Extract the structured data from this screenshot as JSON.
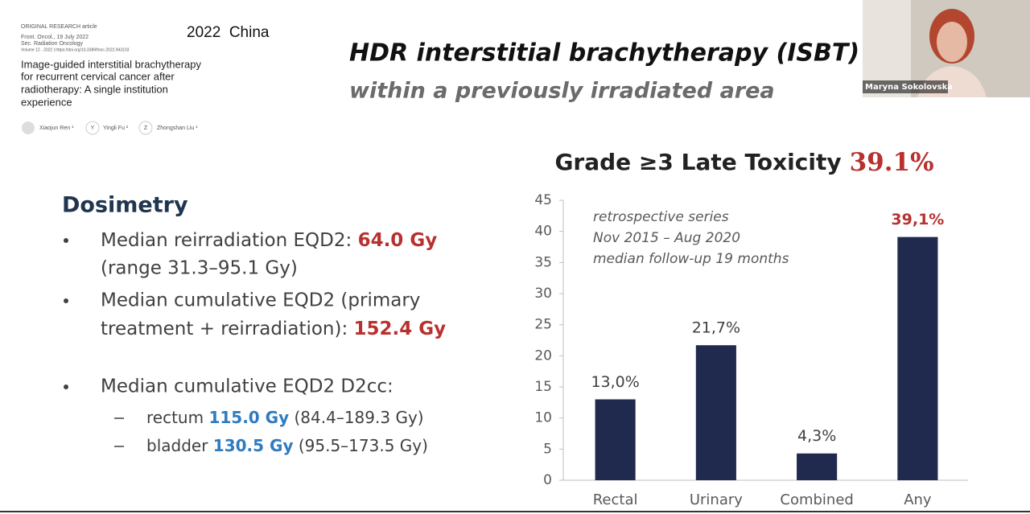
{
  "paper": {
    "article_type": "ORIGINAL RESEARCH article",
    "journal": "Front. Oncol., 19 July 2022",
    "section": "Sec. Radiation Oncology",
    "doi": "Volume 12 - 2022 | https://doi.org/10.3389/fonc.2022.943103",
    "title_lines": [
      "Image-guided interstitial brachytherapy",
      "for recurrent cervical cancer after",
      "radiotherapy: A single institution",
      "experience"
    ],
    "authors": [
      "Xiaojun Ren ¹",
      "Yingli Fu ²",
      "Zhongshan Liu ¹"
    ],
    "author_initials": [
      "Y",
      "Z"
    ]
  },
  "year_country": "2022  China",
  "title": "HDR interstitial brachytherapy (ISBT) ± EBRT",
  "subtitle": "within a previously irradiated area",
  "video": {
    "name": "Maryna Sokolovska"
  },
  "dosimetry": {
    "heading": "Dosimetry",
    "items": [
      {
        "lines": [
          [
            "Median reirradiation EQD2: ",
            "64.0 Gy"
          ],
          [
            "(range 31.3–95.1 Gy)"
          ]
        ]
      },
      {
        "lines": [
          [
            "Median cumulative EQD2 (primary"
          ],
          [
            "treatment + reirradiation): ",
            "152.4 Gy"
          ]
        ]
      },
      {
        "lines": [
          [
            "Median cumulative EQD2 D2cc:"
          ]
        ]
      }
    ],
    "subitems": [
      [
        "rectum ",
        "115.0 Gy",
        " (84.4–189.3 Gy)"
      ],
      [
        "bladder ",
        "130.5 Gy",
        " (95.5–173.5 Gy)"
      ]
    ]
  },
  "chart_data": {
    "type": "bar",
    "title": "Grade ≥3 Late Toxicity",
    "title_highlight": "39.1%",
    "annotations": [
      "retrospective series",
      "Nov 2015 – Aug 2020",
      "median follow-up 19 months"
    ],
    "categories": [
      "Rectal",
      "Urinary",
      "Combined",
      "Any"
    ],
    "values": [
      13.0,
      21.7,
      4.3,
      39.1
    ],
    "value_labels": [
      "13,0%",
      "21,7%",
      "4,3%",
      "39,1%"
    ],
    "value_label_colors": [
      "#404040",
      "#404040",
      "#404040",
      "#b8312f"
    ],
    "color": "#1f2a4e",
    "ylim": [
      0,
      45
    ],
    "yticks": [
      0,
      5,
      10,
      15,
      20,
      25,
      30,
      35,
      40,
      45
    ],
    "grid": false
  }
}
